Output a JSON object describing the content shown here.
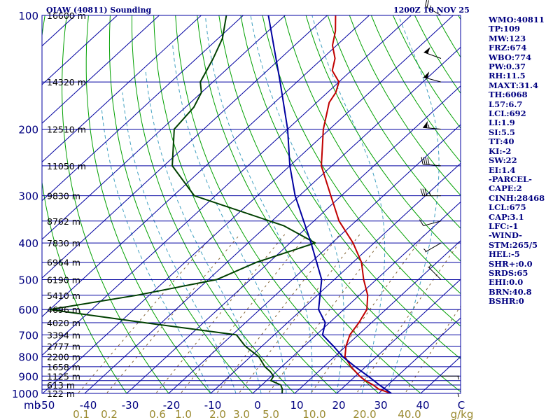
{
  "header": {
    "station": "OIAW (40811) Sounding",
    "time": "1200Z 10 NOV 25"
  },
  "indices": [
    "WMO:40811",
    "TP:109",
    "MW:123",
    "FRZ:674",
    "WBO:774",
    "PW:0.37",
    "RH:11.5",
    "MAXT:31.4",
    "TH:6068",
    "L57:6.7",
    "LCL:692",
    "LI:1.9",
    "SI:5.5",
    "TT:40",
    "KI:-2",
    "SW:22",
    "EI:1.4",
    "-PARCEL-",
    "CAPE:2",
    "CINH:28468",
    "LCL:675",
    "CAP:3.1",
    "LFC:-1",
    "-WIND-",
    "STM:265/5",
    "HEL:-5",
    "SHR+:0.0",
    "SRDS:65",
    "EHI:0.0",
    "BRN:40.8",
    "BSHR:0"
  ],
  "chart_data": {
    "type": "line",
    "diagram": "skew-T log-P",
    "pressure_unit": "mb",
    "temperature_unit": "C",
    "mixing_ratio_unit": "g/kg",
    "ylim": [
      1000,
      100
    ],
    "xlim": [
      -50,
      50
    ],
    "pressure_ticks": [
      100,
      200,
      300,
      400,
      500,
      600,
      700,
      800,
      900,
      1000
    ],
    "isobars": [
      100,
      150,
      200,
      250,
      300,
      350,
      400,
      450,
      500,
      550,
      600,
      650,
      700,
      750,
      800,
      850,
      900,
      925,
      950,
      975,
      1000
    ],
    "height_labels": [
      {
        "p": 100,
        "label": "16600 m"
      },
      {
        "p": 150,
        "label": "14320 m"
      },
      {
        "p": 200,
        "label": "12510 m"
      },
      {
        "p": 250,
        "label": "11050 m"
      },
      {
        "p": 300,
        "label": "9830 m"
      },
      {
        "p": 350,
        "label": "8762 m"
      },
      {
        "p": 400,
        "label": "7830 m"
      },
      {
        "p": 450,
        "label": "6964 m"
      },
      {
        "p": 500,
        "label": "6190 m"
      },
      {
        "p": 550,
        "label": "5410 m"
      },
      {
        "p": 600,
        "label": "4696 m"
      },
      {
        "p": 650,
        "label": "4020 m"
      },
      {
        "p": 700,
        "label": "3394 m"
      },
      {
        "p": 750,
        "label": "2777 m"
      },
      {
        "p": 800,
        "label": "2200 m"
      },
      {
        "p": 850,
        "label": "1658 m"
      },
      {
        "p": 900,
        "label": "1125 m"
      },
      {
        "p": 950,
        "label": "613 m"
      },
      {
        "p": 1000,
        "label": "122 m"
      }
    ],
    "temp_ticks": [
      "-50",
      "-40",
      "-30",
      "-20",
      "-10",
      "0",
      "10",
      "20",
      "30",
      "40",
      "C"
    ],
    "mixing_ratio_ticks": [
      "0.1",
      "0.2",
      "0.6",
      "1.0",
      "2.0",
      "3.0",
      "5.0",
      "10.0",
      "20.0",
      "40.0",
      "g/kg"
    ],
    "series": [
      {
        "key": "temperature",
        "color": "#c00000",
        "points": [
          [
            1000,
            33.0
          ],
          [
            975,
            29.0
          ],
          [
            950,
            26.5
          ],
          [
            925,
            23.5
          ],
          [
            900,
            21.0
          ],
          [
            850,
            16.5
          ],
          [
            800,
            12.5
          ],
          [
            750,
            10.0
          ],
          [
            700,
            8.0
          ],
          [
            650,
            7.0
          ],
          [
            600,
            5.5
          ],
          [
            550,
            2.0
          ],
          [
            500,
            -3.0
          ],
          [
            450,
            -8.0
          ],
          [
            400,
            -15.0
          ],
          [
            350,
            -24.0
          ],
          [
            300,
            -32.5
          ],
          [
            250,
            -42.5
          ],
          [
            200,
            -51.5
          ],
          [
            170,
            -57.0
          ],
          [
            160,
            -58.0
          ],
          [
            150,
            -60.0
          ],
          [
            140,
            -64.5
          ],
          [
            130,
            -67.0
          ],
          [
            120,
            -71.0
          ],
          [
            110,
            -74.0
          ],
          [
            100,
            -78.0
          ]
        ]
      },
      {
        "key": "dewpoint",
        "color": "#004000",
        "points": [
          [
            1000,
            7.0
          ],
          [
            975,
            6.0
          ],
          [
            950,
            4.5
          ],
          [
            925,
            1.0
          ],
          [
            900,
            0.5
          ],
          [
            875,
            -1.5
          ],
          [
            850,
            -4.0
          ],
          [
            800,
            -8.0
          ],
          [
            750,
            -14.0
          ],
          [
            700,
            -19.0
          ],
          [
            650,
            -44.0
          ],
          [
            600,
            -70.0
          ],
          [
            550,
            -53.0
          ],
          [
            500,
            -38.0
          ],
          [
            450,
            -33.0
          ],
          [
            400,
            -24.0
          ],
          [
            360,
            -36.0
          ],
          [
            300,
            -65.0
          ],
          [
            250,
            -78.0
          ],
          [
            200,
            -87.0
          ],
          [
            175,
            -88.0
          ],
          [
            160,
            -90.0
          ],
          [
            150,
            -93.0
          ],
          [
            130,
            -96.0
          ],
          [
            115,
            -99.0
          ],
          [
            100,
            -104.0
          ]
        ]
      },
      {
        "key": "parcel",
        "color": "#0000a0",
        "points": [
          [
            1000,
            33.0
          ],
          [
            950,
            28.0
          ],
          [
            900,
            23.0
          ],
          [
            850,
            17.5
          ],
          [
            800,
            12.0
          ],
          [
            750,
            7.0
          ],
          [
            700,
            1.5
          ],
          [
            650,
            -1.0
          ],
          [
            600,
            -6.0
          ],
          [
            500,
            -13.0
          ],
          [
            400,
            -25.0
          ],
          [
            300,
            -41.0
          ],
          [
            250,
            -50.0
          ],
          [
            200,
            -60.0
          ],
          [
            150,
            -74.0
          ],
          [
            100,
            -94.0
          ]
        ]
      }
    ],
    "dry_adiabats_C": [
      -30,
      -20,
      -10,
      0,
      10,
      20,
      30,
      40,
      50,
      60,
      70,
      80,
      90,
      100,
      110,
      120,
      130,
      140,
      150,
      160,
      170,
      180,
      190,
      200
    ],
    "moist_adiabats_C": [
      -10,
      -4,
      2,
      8,
      14,
      20,
      26,
      32
    ],
    "mixing_ratio_lines_gkg": [
      0.1,
      0.2,
      0.6,
      1,
      2,
      3,
      5,
      10,
      20,
      40
    ],
    "wind_barbs": [
      {
        "p": 100,
        "dir": 300,
        "kt": 25
      },
      {
        "p": 130,
        "dir": 290,
        "kt": 50
      },
      {
        "p": 150,
        "dir": 285,
        "kt": 50
      },
      {
        "p": 200,
        "dir": 275,
        "kt": 55
      },
      {
        "p": 250,
        "dir": 275,
        "kt": 40
      },
      {
        "p": 300,
        "dir": 270,
        "kt": 35
      },
      {
        "p": 350,
        "dir": 255,
        "kt": 10
      },
      {
        "p": 400,
        "dir": 240,
        "kt": 5
      },
      {
        "p": 500,
        "dir": 315,
        "kt": 5
      },
      {
        "p": 900,
        "dir": 90,
        "kt": 5
      },
      {
        "p": 1000,
        "dir": 90,
        "kt": 5
      }
    ],
    "colors": {
      "isotherm": "#0000a0",
      "isobar": "#0000a0",
      "dry_adiabat": "#00a000",
      "moist_adiabat": "#40a0c0",
      "mixing_ratio": "#806030",
      "axis_label": "#000080",
      "mixing_ratio_label": "#9a8a30"
    }
  }
}
